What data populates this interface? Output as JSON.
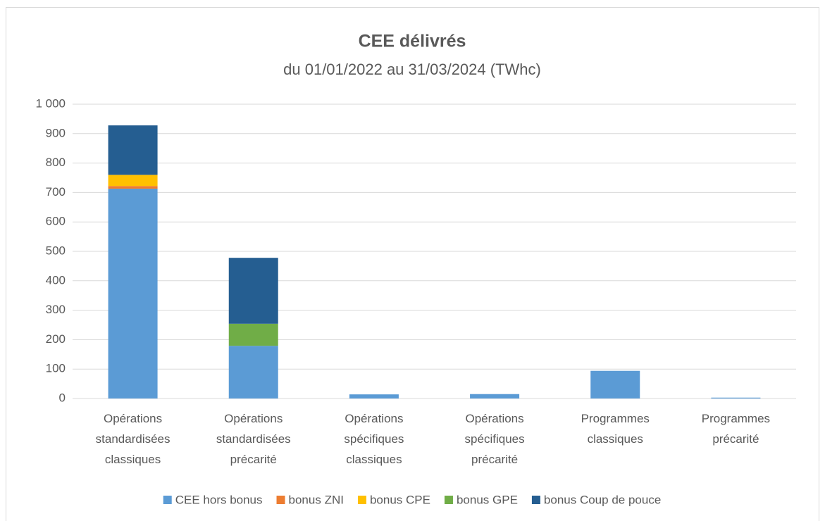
{
  "chart_data": {
    "type": "stacked_bar",
    "title": "CEE délivrés",
    "subtitle": "du 01/01/2022 au 31/03/2024 (TWhc)",
    "categories": [
      [
        "Opérations",
        "standardisées",
        "classiques"
      ],
      [
        "Opérations",
        "standardisées",
        "précarité"
      ],
      [
        "Opérations",
        "spécifiques",
        "classiques"
      ],
      [
        "Opérations",
        "spécifiques",
        "précarité"
      ],
      [
        "Programmes",
        "classiques"
      ],
      [
        "Programmes",
        "précarité"
      ]
    ],
    "series": [
      {
        "name": "CEE hors bonus",
        "color": "#5b9bd5",
        "values": [
          713,
          179,
          14,
          15,
          94,
          3
        ]
      },
      {
        "name": "bonus ZNI",
        "color": "#ed7d31",
        "values": [
          9,
          0,
          0,
          0,
          0,
          0
        ]
      },
      {
        "name": "bonus CPE",
        "color": "#ffc000",
        "values": [
          38,
          0,
          0,
          0,
          0,
          0
        ]
      },
      {
        "name": "bonus GPE",
        "color": "#70ad47",
        "values": [
          0,
          75,
          0,
          0,
          0,
          0
        ]
      },
      {
        "name": "bonus Coup de pouce",
        "color": "#255e91",
        "values": [
          168,
          224,
          0,
          0,
          0,
          0
        ]
      }
    ],
    "ylim": [
      0,
      1000
    ],
    "yticks": [
      0,
      100,
      200,
      300,
      400,
      500,
      600,
      700,
      800,
      900,
      {
        "value": 1000,
        "label": "1 000"
      }
    ],
    "grid": true,
    "legend": "bottom"
  }
}
